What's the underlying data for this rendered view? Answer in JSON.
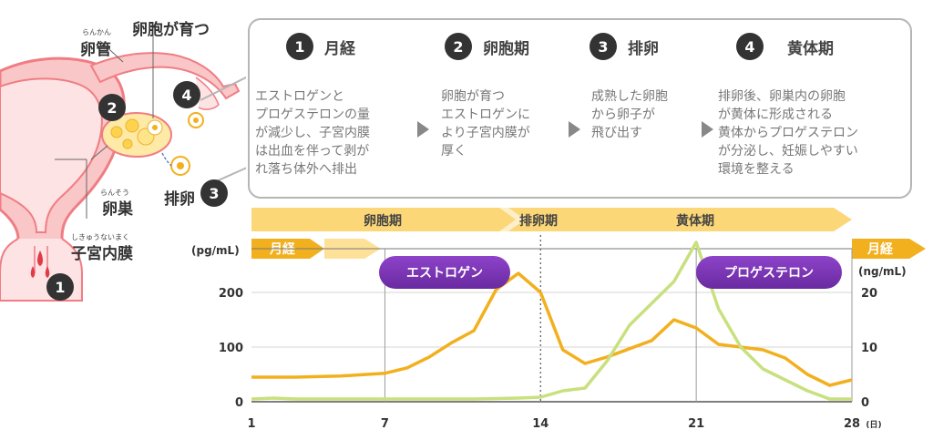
{
  "illustration": {
    "labels": {
      "oviduct": "卵管",
      "oviduct_ruby": "らんかん",
      "follicle_growth": "卵胞が育つ",
      "ovary": "卵巣",
      "ovary_ruby": "らんそう",
      "endometrium": "子宮内膜",
      "endometrium_ruby": "しきゅうないまく",
      "ovulation": "排卵"
    },
    "markers": [
      "1",
      "2",
      "3",
      "4"
    ]
  },
  "phases": [
    {
      "num": "1",
      "title": "月経",
      "desc": "エストロゲンと\nプロゲステロンの量\nが減少し、子宮内膜\nは出血を伴って剥が\nれ落ち体外へ排出"
    },
    {
      "num": "2",
      "title": "卵胞期",
      "desc": "卵胞が育つ\nエストロゲンに\nより子宮内膜が\n厚く"
    },
    {
      "num": "3",
      "title": "排卵",
      "desc": "成熟した卵胞\nから卵子が\n飛び出す"
    },
    {
      "num": "4",
      "title": "黄体期",
      "desc": "排卵後、卵巣内の卵胞\nが黄体に形成される\n黄体からプロゲステロン\nが分泌し、妊娠しやすい\n環境を整える"
    }
  ],
  "colors": {
    "estrogen": "#f2b01e",
    "progesterone": "#c9e07e",
    "arrow_band": "#fcd777",
    "badge_purple": "#7b33b3",
    "dark": "#333333"
  },
  "chart_data": {
    "type": "line",
    "phase_band": [
      "卵胞期",
      "排卵期",
      "黄体期"
    ],
    "menstruation_label": "月経",
    "left_unit": "(pg/mL)",
    "right_unit": "(ng/mL)",
    "x_unit": "(日)",
    "x_ticks": [
      1,
      7,
      14,
      21,
      28
    ],
    "xlim": [
      1,
      28
    ],
    "ylim_left": [
      0,
      280
    ],
    "y_ticks_left": [
      0,
      100,
      200
    ],
    "y_ticks_right": [
      0,
      10,
      20
    ],
    "ylim_right": [
      0,
      33.6
    ],
    "series": [
      {
        "name": "エストロゲン",
        "axis": "left",
        "x": [
          1,
          3,
          5,
          7,
          8,
          9,
          10,
          11,
          12,
          13,
          14,
          15,
          16,
          17,
          18,
          19,
          20,
          21,
          22,
          23,
          24,
          25,
          26,
          27,
          28
        ],
        "y": [
          45,
          45,
          47,
          52,
          62,
          82,
          108,
          130,
          205,
          235,
          200,
          95,
          70,
          82,
          97,
          112,
          150,
          135,
          105,
          100,
          95,
          80,
          50,
          30,
          40
        ]
      },
      {
        "name": "プロゲステロン",
        "axis": "right",
        "x": [
          1,
          2,
          3,
          5,
          7,
          9,
          11,
          13,
          14,
          15,
          16,
          17,
          18,
          19,
          20,
          21,
          22,
          23,
          24,
          25,
          26,
          27,
          28
        ],
        "y": [
          0.6,
          0.8,
          0.6,
          0.6,
          0.6,
          0.6,
          0.6,
          0.8,
          1.0,
          2.4,
          3.0,
          9.0,
          16.8,
          21.6,
          26.4,
          35.0,
          20.4,
          12.0,
          7.2,
          4.8,
          2.4,
          0.6,
          0.6
        ]
      }
    ]
  }
}
